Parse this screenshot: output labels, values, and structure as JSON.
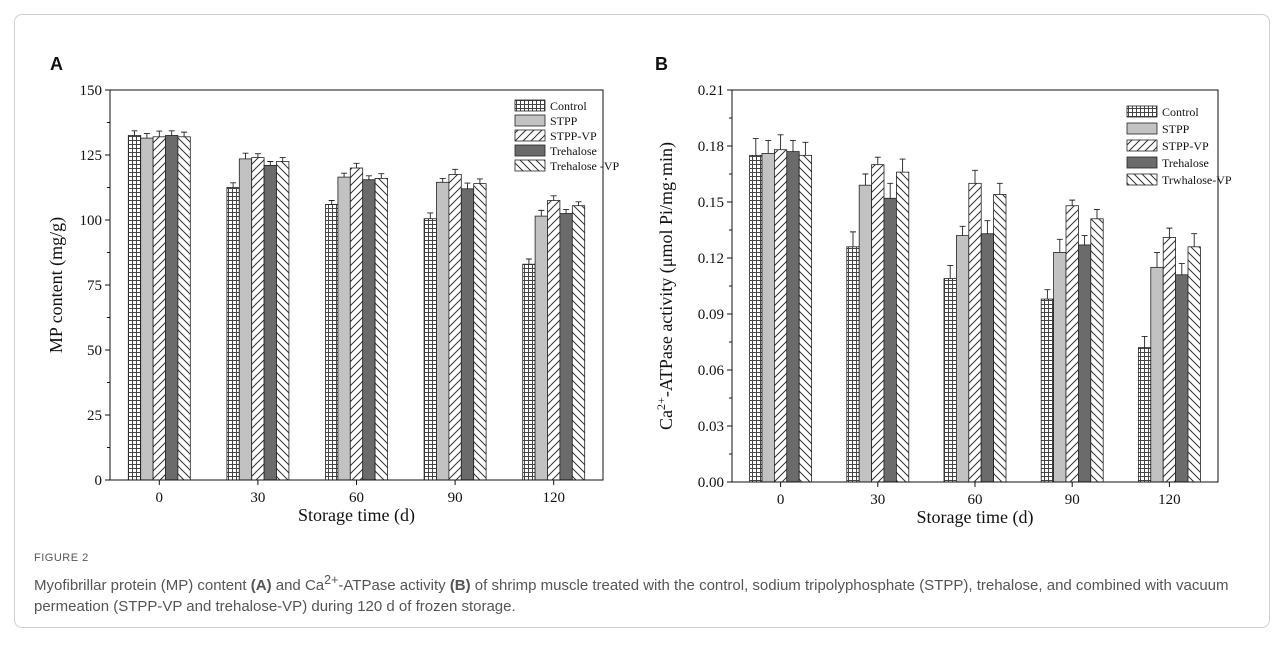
{
  "figure": {
    "label": "FIGURE 2",
    "caption": {
      "p1": "Myofibrillar protein (MP) content ",
      "b1": "(A)",
      "p2": " and Ca",
      "sup": "2+",
      "p3": "-ATPase activity ",
      "b2": "(B)",
      "p4": " of shrimp muscle treated with the control, sodium tripolyphosphate (STPP), trehalose, and combined with vacuum permeation (STPP-VP and trehalose-VP) during 120 d of frozen storage."
    }
  },
  "chart_data": [
    {
      "panel": "A",
      "type": "bar",
      "xlabel": "Storage time (d)",
      "ylabel": "MP content (mg/g)",
      "ylim": [
        0,
        150
      ],
      "yticks": [
        0,
        25,
        50,
        75,
        100,
        125,
        150
      ],
      "categories": [
        "0",
        "30",
        "60",
        "90",
        "120"
      ],
      "legend_position": "top-right",
      "series": [
        {
          "name": "Control",
          "pattern": "grid",
          "values": [
            132.5,
            112.5,
            106,
            100.5,
            83
          ],
          "errors": [
            1.8,
            1.8,
            1.5,
            2.2,
            2.0
          ]
        },
        {
          "name": "STPP",
          "pattern": "light",
          "values": [
            131.5,
            123.5,
            116.5,
            114.5,
            101.5
          ],
          "errors": [
            1.8,
            2.2,
            1.5,
            1.5,
            2.2
          ]
        },
        {
          "name": "STPP-VP",
          "pattern": "diag-right",
          "values": [
            132,
            124,
            120,
            117.5,
            107.5
          ],
          "errors": [
            2.2,
            1.5,
            1.8,
            2.0,
            1.8
          ]
        },
        {
          "name": "Trehalose",
          "pattern": "dark",
          "values": [
            132.5,
            121,
            115.5,
            112,
            102.5
          ],
          "errors": [
            1.8,
            1.5,
            1.5,
            2.2,
            1.5
          ]
        },
        {
          "name": "Trehalose -VP",
          "pattern": "diag-left",
          "values": [
            132,
            122.5,
            116,
            114,
            105.5
          ],
          "errors": [
            1.8,
            1.5,
            1.8,
            1.8,
            1.5
          ]
        }
      ]
    },
    {
      "panel": "B",
      "type": "bar",
      "xlabel": "Storage time (d)",
      "ylabel_pre": "Ca",
      "ylabel_sup": "2+",
      "ylabel_post": "-ATPase activity (μmol Pi/mg·min)",
      "ylim": [
        0,
        0.21
      ],
      "yticks": [
        "0.00",
        "0.03",
        "0.06",
        "0.09",
        "0.12",
        "0.15",
        "0.18",
        "0.21"
      ],
      "categories": [
        "0",
        "30",
        "60",
        "90",
        "120"
      ],
      "legend_position": "top-right",
      "series": [
        {
          "name": "Control",
          "pattern": "grid",
          "values": [
            0.175,
            0.126,
            0.109,
            0.098,
            0.072
          ],
          "errors": [
            0.009,
            0.008,
            0.007,
            0.005,
            0.006
          ]
        },
        {
          "name": "STPP",
          "pattern": "light",
          "values": [
            0.176,
            0.159,
            0.132,
            0.123,
            0.115
          ],
          "errors": [
            0.007,
            0.006,
            0.005,
            0.007,
            0.008
          ]
        },
        {
          "name": "STPP-VP",
          "pattern": "diag-right",
          "values": [
            0.178,
            0.17,
            0.16,
            0.148,
            0.131
          ],
          "errors": [
            0.008,
            0.004,
            0.007,
            0.003,
            0.005
          ]
        },
        {
          "name": "Trehalose",
          "pattern": "dark",
          "values": [
            0.177,
            0.152,
            0.133,
            0.127,
            0.111
          ],
          "errors": [
            0.006,
            0.008,
            0.007,
            0.005,
            0.006
          ]
        },
        {
          "name": "Trwhalose-VP",
          "pattern": "diag-left",
          "values": [
            0.175,
            0.166,
            0.154,
            0.141,
            0.126
          ],
          "errors": [
            0.007,
            0.007,
            0.006,
            0.005,
            0.007
          ]
        }
      ]
    }
  ]
}
